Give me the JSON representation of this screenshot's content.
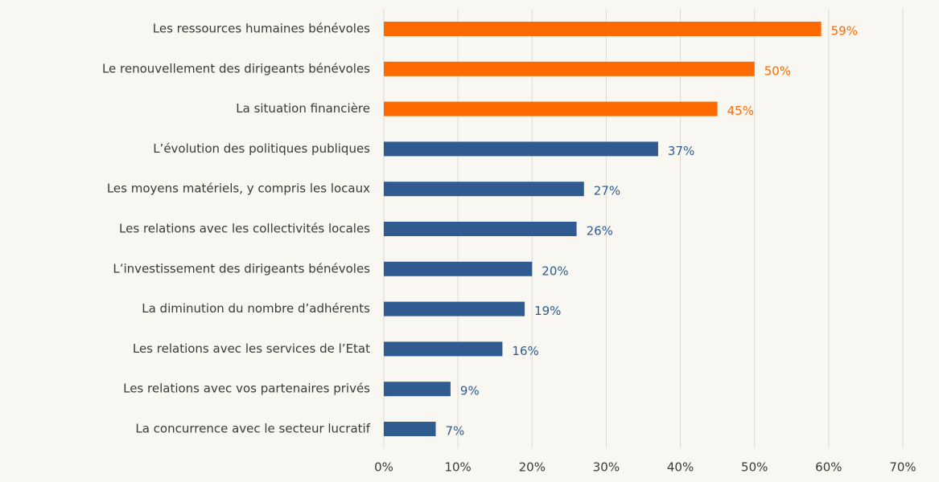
{
  "chart_data": {
    "type": "bar",
    "orientation": "horizontal",
    "categories": [
      "Les ressources humaines bénévoles",
      "Le renouvellement des dirigeants bénévoles",
      "La situation financière",
      "L’évolution des politiques publiques",
      "Les moyens matériels, y compris les locaux",
      "Les relations avec les collectivités locales",
      "L’investissement des dirigeants bénévoles",
      "La diminution du nombre d’adhérents",
      "Les relations avec les services de l’Etat",
      "Les relations avec vos partenaires privés",
      "La concurrence avec le secteur lucratif"
    ],
    "values": [
      59,
      50,
      45,
      37,
      27,
      26,
      20,
      19,
      16,
      9,
      7
    ],
    "value_labels": [
      "59%",
      "50%",
      "45%",
      "37%",
      "27%",
      "26%",
      "20%",
      "19%",
      "16%",
      "9%",
      "7%"
    ],
    "colors": [
      "#ff6a00",
      "#ff6a00",
      "#ff6a00",
      "#2f5b91",
      "#2f5b91",
      "#2f5b91",
      "#2f5b91",
      "#2f5b91",
      "#2f5b91",
      "#2f5b91",
      "#2f5b91"
    ],
    "xlim": [
      0,
      70
    ],
    "xticks": [
      {
        "value": 0,
        "label": "0%"
      },
      {
        "value": 10,
        "label": "10%"
      },
      {
        "value": 20,
        "label": "20%"
      },
      {
        "value": 30,
        "label": "30%"
      },
      {
        "value": 40,
        "label": "40%"
      },
      {
        "value": 50,
        "label": "50%"
      },
      {
        "value": 60,
        "label": "60%"
      },
      {
        "value": 70,
        "label": "70%"
      }
    ],
    "grid": true
  }
}
